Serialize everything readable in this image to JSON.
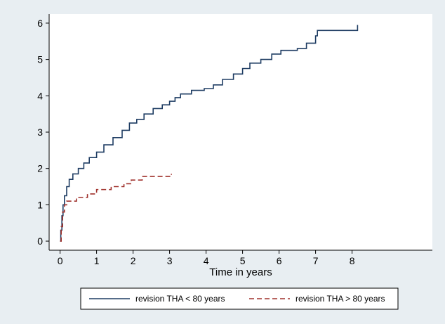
{
  "chart_data": {
    "type": "line",
    "title": "",
    "xlabel": "Time in years",
    "ylabel": "",
    "xlim": [
      -0.3,
      10.2
    ],
    "ylim": [
      -0.25,
      6.25
    ],
    "x_ticks": [
      0,
      1,
      2,
      3,
      4,
      5,
      6,
      7,
      8
    ],
    "y_ticks": [
      0,
      1,
      2,
      3,
      4,
      5,
      6
    ],
    "grid": false,
    "legend_position": "bottom",
    "series": [
      {
        "name": "revision THA < 80 years",
        "color": "#1f3d63",
        "style": "solid",
        "step": true,
        "points": [
          [
            0,
            0
          ],
          [
            0.02,
            0.3
          ],
          [
            0.05,
            0.7
          ],
          [
            0.08,
            1.0
          ],
          [
            0.12,
            1.25
          ],
          [
            0.18,
            1.5
          ],
          [
            0.25,
            1.7
          ],
          [
            0.35,
            1.85
          ],
          [
            0.5,
            2.0
          ],
          [
            0.65,
            2.15
          ],
          [
            0.8,
            2.3
          ],
          [
            1.0,
            2.45
          ],
          [
            1.2,
            2.65
          ],
          [
            1.45,
            2.85
          ],
          [
            1.7,
            3.05
          ],
          [
            1.9,
            3.25
          ],
          [
            2.1,
            3.35
          ],
          [
            2.3,
            3.5
          ],
          [
            2.55,
            3.65
          ],
          [
            2.8,
            3.75
          ],
          [
            3.0,
            3.85
          ],
          [
            3.15,
            3.95
          ],
          [
            3.3,
            4.05
          ],
          [
            3.6,
            4.15
          ],
          [
            3.95,
            4.2
          ],
          [
            4.2,
            4.3
          ],
          [
            4.45,
            4.45
          ],
          [
            4.75,
            4.6
          ],
          [
            5.0,
            4.75
          ],
          [
            5.2,
            4.9
          ],
          [
            5.5,
            5.0
          ],
          [
            5.8,
            5.15
          ],
          [
            6.05,
            5.25
          ],
          [
            6.5,
            5.3
          ],
          [
            6.75,
            5.45
          ],
          [
            7.0,
            5.65
          ],
          [
            7.05,
            5.8
          ],
          [
            8.1,
            5.8
          ],
          [
            8.15,
            5.95
          ]
        ]
      },
      {
        "name": "revision THA > 80 years",
        "color": "#a0322d",
        "style": "dashed",
        "step": true,
        "points": [
          [
            0,
            0
          ],
          [
            0.03,
            0.4
          ],
          [
            0.07,
            0.8
          ],
          [
            0.12,
            1.0
          ],
          [
            0.18,
            1.1
          ],
          [
            0.45,
            1.2
          ],
          [
            0.75,
            1.3
          ],
          [
            1.0,
            1.42
          ],
          [
            1.4,
            1.5
          ],
          [
            1.75,
            1.58
          ],
          [
            1.95,
            1.68
          ],
          [
            2.25,
            1.78
          ],
          [
            3.05,
            1.85
          ]
        ]
      }
    ]
  }
}
